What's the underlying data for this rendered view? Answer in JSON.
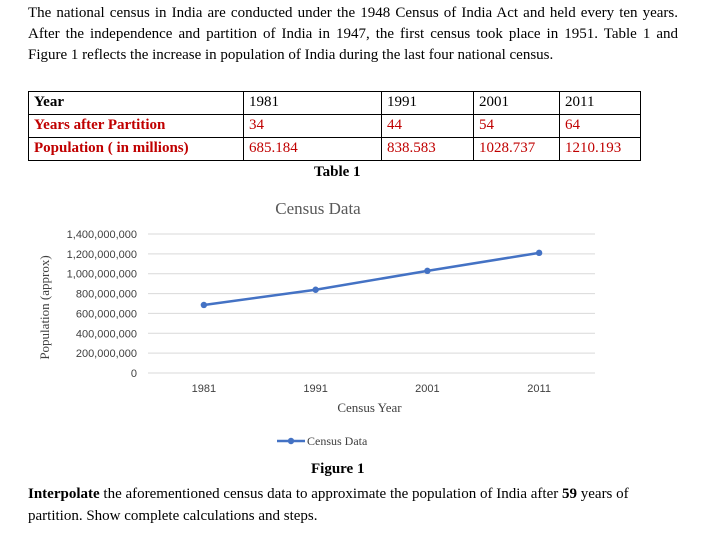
{
  "intro": {
    "text": "The national census in India are conducted under the 1948 Census of India Act and held every ten years. After the independence and partition of India in 1947, the first census took place in 1951. Table 1 and Figure 1 reflects the increase in population of India during the last four national census."
  },
  "table": {
    "rows": [
      {
        "label": "Year",
        "cells": [
          "1981",
          "1991",
          "2001",
          "2011"
        ]
      },
      {
        "label": "Years after Partition",
        "cells": [
          "34",
          "44",
          "54",
          "64"
        ]
      },
      {
        "label": "Population ( in millions)",
        "cells": [
          "685.184",
          "838.583",
          "1028.737",
          "1210.193"
        ]
      }
    ],
    "caption": "Table 1"
  },
  "chart_data": {
    "type": "line",
    "title": "Census Data",
    "xlabel": "Census Year",
    "ylabel": "Population (approx)",
    "categories": [
      "1981",
      "1991",
      "2001",
      "2011"
    ],
    "series": [
      {
        "name": "Census Data",
        "values": [
          685184000,
          838583000,
          1028737000,
          1210193000
        ],
        "color": "#4472c4"
      }
    ],
    "yticks": [
      "0",
      "200,000,000",
      "400,000,000",
      "600,000,000",
      "800,000,000",
      "1,000,000,000",
      "1,200,000,000",
      "1,400,000,000"
    ],
    "ylim": [
      0,
      1400000000
    ],
    "grid": true,
    "legend": "bottom"
  },
  "figure": {
    "caption": "Figure 1"
  },
  "question": {
    "bold1": "Interpolate",
    "part1": " the aforementioned census data to approximate the population of India after ",
    "bold2": "59",
    "part2": " years of partition. Show complete calculations and steps."
  }
}
